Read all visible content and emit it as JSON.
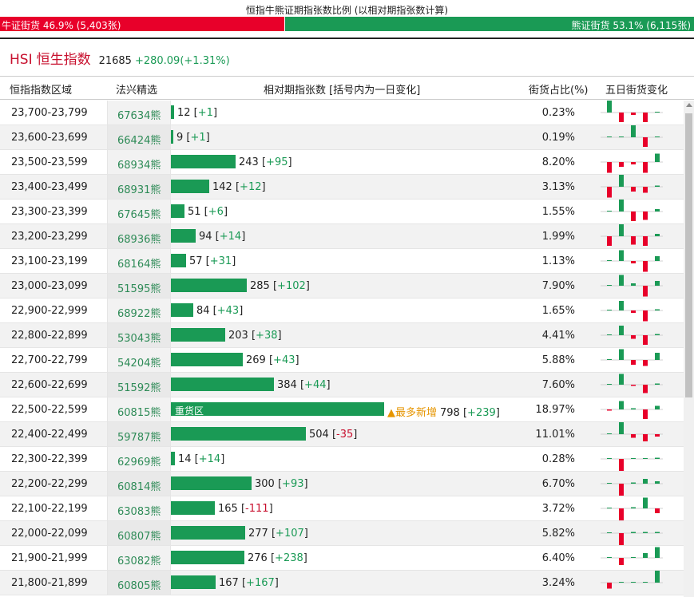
{
  "page_title": "恒指牛熊证期指张数比例 (以相对期指张数计算)",
  "ratio": {
    "bull_label": "牛证街货 46.9% (5,403张)",
    "bear_label": "熊证街货 53.1% (6,115张)",
    "bull_fraction": 0.469,
    "bull_color": "#e8002a",
    "bear_color": "#1a9a55"
  },
  "index": {
    "code": "HSI",
    "name": "恒生指数",
    "value": "21685",
    "change": "+280.09(+1.31%)"
  },
  "headers": {
    "range": "恒指指数区域",
    "pick": "法兴精选",
    "contracts": "相对期指张数 [括号内为一日变化]",
    "share": "街货占比(%)",
    "five_day": "五日街货变化"
  },
  "most_new_label": "▲最多新增",
  "heavy_zone_label": "重货区",
  "colors": {
    "up": "#1a9a55",
    "down": "#e8002a"
  },
  "rows": [
    {
      "range": "23,700-23,799",
      "code": "67634熊",
      "contracts": "12",
      "change": "+1",
      "share": "0.23%",
      "five": [
        10,
        -8,
        -2,
        -8,
        0
      ]
    },
    {
      "range": "23,600-23,699",
      "code": "66424熊",
      "contracts": "9",
      "change": "+1",
      "share": "0.19%",
      "five": [
        0,
        0,
        10,
        -8,
        0
      ]
    },
    {
      "range": "23,500-23,599",
      "code": "68934熊",
      "contracts": "243",
      "change": "+95",
      "share": "8.20%",
      "five": [
        -9,
        -4,
        -2,
        -9,
        7
      ]
    },
    {
      "range": "23,400-23,499",
      "code": "68931熊",
      "contracts": "142",
      "change": "+12",
      "share": "3.13%",
      "five": [
        -9,
        10,
        -4,
        -5,
        1
      ]
    },
    {
      "range": "23,300-23,399",
      "code": "67645熊",
      "contracts": "51",
      "change": "+6",
      "share": "1.55%",
      "five": [
        0,
        10,
        -8,
        -7,
        2
      ]
    },
    {
      "range": "23,200-23,299",
      "code": "68936熊",
      "contracts": "94",
      "change": "+14",
      "share": "1.99%",
      "five": [
        -8,
        10,
        -7,
        -8,
        2
      ]
    },
    {
      "range": "23,100-23,199",
      "code": "68164熊",
      "contracts": "57",
      "change": "+31",
      "share": "1.13%",
      "five": [
        0,
        9,
        -2,
        -9,
        4
      ]
    },
    {
      "range": "23,000-23,099",
      "code": "51595熊",
      "contracts": "285",
      "change": "+102",
      "share": "7.90%",
      "five": [
        0,
        9,
        2,
        -9,
        4
      ]
    },
    {
      "range": "22,900-22,999",
      "code": "68922熊",
      "contracts": "84",
      "change": "+43",
      "share": "1.65%",
      "five": [
        0,
        8,
        -2,
        -9,
        1
      ]
    },
    {
      "range": "22,800-22,899",
      "code": "53043熊",
      "contracts": "203",
      "change": "+38",
      "share": "4.41%",
      "five": [
        0,
        8,
        -3,
        -8,
        1
      ]
    },
    {
      "range": "22,700-22,799",
      "code": "54204熊",
      "contracts": "269",
      "change": "+43",
      "share": "5.88%",
      "five": [
        0,
        9,
        -4,
        -5,
        6
      ]
    },
    {
      "range": "22,600-22,699",
      "code": "51592熊",
      "contracts": "384",
      "change": "+44",
      "share": "7.60%",
      "five": [
        0,
        9,
        -1,
        -7,
        1
      ]
    },
    {
      "range": "22,500-22,599",
      "code": "60815熊",
      "contracts": "798",
      "change": "+239",
      "share": "18.97%",
      "five": [
        -1,
        7,
        1,
        -8,
        3
      ],
      "heavy": true,
      "most": true
    },
    {
      "range": "22,400-22,499",
      "code": "59787熊",
      "contracts": "504",
      "change": "-35",
      "share": "11.01%",
      "five": [
        0,
        10,
        -3,
        -6,
        -2
      ]
    },
    {
      "range": "22,300-22,399",
      "code": "62969熊",
      "contracts": "14",
      "change": "+14",
      "share": "0.28%",
      "five": [
        0,
        -10,
        0,
        0,
        1
      ]
    },
    {
      "range": "22,200-22,299",
      "code": "60814熊",
      "contracts": "300",
      "change": "+93",
      "share": "6.70%",
      "five": [
        0,
        -10,
        1,
        4,
        2
      ]
    },
    {
      "range": "22,100-22,199",
      "code": "63083熊",
      "contracts": "165",
      "change": "-111",
      "share": "3.72%",
      "five": [
        0,
        -10,
        1,
        9,
        -4
      ]
    },
    {
      "range": "22,000-22,099",
      "code": "60807熊",
      "contracts": "277",
      "change": "+107",
      "share": "5.82%",
      "five": [
        0,
        -10,
        1,
        1,
        1
      ]
    },
    {
      "range": "21,900-21,999",
      "code": "63082熊",
      "contracts": "276",
      "change": "+238",
      "share": "6.40%",
      "five": [
        0,
        -6,
        0,
        4,
        9
      ]
    },
    {
      "range": "21,800-21,899",
      "code": "60805熊",
      "contracts": "167",
      "change": "+167",
      "share": "3.24%",
      "five": [
        -5,
        0,
        0,
        0,
        10
      ]
    }
  ]
}
